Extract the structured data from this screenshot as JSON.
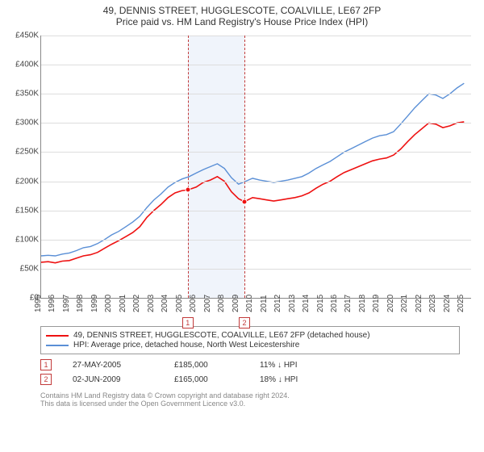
{
  "title": {
    "line1": "49, DENNIS STREET, HUGGLESCOTE, COALVILLE, LE67 2FP",
    "line2": "Price paid vs. HM Land Registry's House Price Index (HPI)"
  },
  "chart": {
    "type": "line",
    "background_color": "#ffffff",
    "grid_color": "#dddddd",
    "axis_color": "#888888",
    "x_min": 1995,
    "x_max": 2025.5,
    "y_min": 0,
    "y_max": 450000,
    "y_ticks": [
      0,
      50000,
      100000,
      150000,
      200000,
      250000,
      300000,
      350000,
      400000,
      450000
    ],
    "y_tick_labels": [
      "£0",
      "£50K",
      "£100K",
      "£150K",
      "£200K",
      "£250K",
      "£300K",
      "£350K",
      "£400K",
      "£450K"
    ],
    "x_ticks": [
      1995,
      1996,
      1997,
      1998,
      1999,
      2000,
      2001,
      2002,
      2003,
      2004,
      2005,
      2006,
      2007,
      2008,
      2009,
      2010,
      2011,
      2012,
      2013,
      2014,
      2015,
      2016,
      2017,
      2018,
      2019,
      2020,
      2021,
      2022,
      2023,
      2024,
      2025
    ],
    "shaded_regions": [
      {
        "from": 2005.4,
        "to": 2009.42,
        "fill": "#f0f4fb",
        "border_color": "#c23a3a"
      }
    ],
    "sale_markers": [
      {
        "label": "1",
        "x": 2005.4,
        "y": 185000,
        "color": "#c23a3a",
        "dot_color": "#e11"
      },
      {
        "label": "2",
        "x": 2009.42,
        "y": 165000,
        "color": "#c23a3a",
        "dot_color": "#e11"
      }
    ],
    "series": [
      {
        "name": "property",
        "color": "#e11",
        "width": 1.6,
        "points": [
          [
            1995,
            61000
          ],
          [
            1995.5,
            62000
          ],
          [
            1996,
            60000
          ],
          [
            1996.5,
            63000
          ],
          [
            1997,
            64000
          ],
          [
            1997.5,
            68000
          ],
          [
            1998,
            72000
          ],
          [
            1998.5,
            74000
          ],
          [
            1999,
            78000
          ],
          [
            1999.5,
            85000
          ],
          [
            2000,
            92000
          ],
          [
            2000.5,
            98000
          ],
          [
            2001,
            105000
          ],
          [
            2001.5,
            112000
          ],
          [
            2002,
            122000
          ],
          [
            2002.5,
            138000
          ],
          [
            2003,
            150000
          ],
          [
            2003.5,
            160000
          ],
          [
            2004,
            172000
          ],
          [
            2004.5,
            180000
          ],
          [
            2005,
            184000
          ],
          [
            2005.4,
            185000
          ],
          [
            2006,
            190000
          ],
          [
            2006.5,
            198000
          ],
          [
            2007,
            202000
          ],
          [
            2007.5,
            208000
          ],
          [
            2008,
            200000
          ],
          [
            2008.5,
            182000
          ],
          [
            2009,
            170000
          ],
          [
            2009.42,
            165000
          ],
          [
            2010,
            172000
          ],
          [
            2010.5,
            170000
          ],
          [
            2011,
            168000
          ],
          [
            2011.5,
            166000
          ],
          [
            2012,
            168000
          ],
          [
            2012.5,
            170000
          ],
          [
            2013,
            172000
          ],
          [
            2013.5,
            175000
          ],
          [
            2014,
            180000
          ],
          [
            2014.5,
            188000
          ],
          [
            2015,
            195000
          ],
          [
            2015.5,
            200000
          ],
          [
            2016,
            208000
          ],
          [
            2016.5,
            215000
          ],
          [
            2017,
            220000
          ],
          [
            2017.5,
            225000
          ],
          [
            2018,
            230000
          ],
          [
            2018.5,
            235000
          ],
          [
            2019,
            238000
          ],
          [
            2019.5,
            240000
          ],
          [
            2020,
            245000
          ],
          [
            2020.5,
            255000
          ],
          [
            2021,
            268000
          ],
          [
            2021.5,
            280000
          ],
          [
            2022,
            290000
          ],
          [
            2022.5,
            300000
          ],
          [
            2023,
            298000
          ],
          [
            2023.5,
            292000
          ],
          [
            2024,
            295000
          ],
          [
            2024.5,
            300000
          ],
          [
            2025,
            302000
          ]
        ]
      },
      {
        "name": "hpi",
        "color": "#5a8fd6",
        "width": 1.4,
        "points": [
          [
            1995,
            72000
          ],
          [
            1995.5,
            73000
          ],
          [
            1996,
            72000
          ],
          [
            1996.5,
            75000
          ],
          [
            1997,
            77000
          ],
          [
            1997.5,
            81000
          ],
          [
            1998,
            86000
          ],
          [
            1998.5,
            88000
          ],
          [
            1999,
            93000
          ],
          [
            1999.5,
            100000
          ],
          [
            2000,
            108000
          ],
          [
            2000.5,
            114000
          ],
          [
            2001,
            122000
          ],
          [
            2001.5,
            130000
          ],
          [
            2002,
            140000
          ],
          [
            2002.5,
            155000
          ],
          [
            2003,
            168000
          ],
          [
            2003.5,
            178000
          ],
          [
            2004,
            190000
          ],
          [
            2004.5,
            198000
          ],
          [
            2005,
            204000
          ],
          [
            2005.5,
            208000
          ],
          [
            2006,
            214000
          ],
          [
            2006.5,
            220000
          ],
          [
            2007,
            225000
          ],
          [
            2007.5,
            230000
          ],
          [
            2008,
            222000
          ],
          [
            2008.5,
            206000
          ],
          [
            2009,
            195000
          ],
          [
            2009.5,
            200000
          ],
          [
            2010,
            205000
          ],
          [
            2010.5,
            202000
          ],
          [
            2011,
            200000
          ],
          [
            2011.5,
            198000
          ],
          [
            2012,
            200000
          ],
          [
            2012.5,
            202000
          ],
          [
            2013,
            205000
          ],
          [
            2013.5,
            208000
          ],
          [
            2014,
            214000
          ],
          [
            2014.5,
            222000
          ],
          [
            2015,
            228000
          ],
          [
            2015.5,
            234000
          ],
          [
            2016,
            242000
          ],
          [
            2016.5,
            250000
          ],
          [
            2017,
            256000
          ],
          [
            2017.5,
            262000
          ],
          [
            2018,
            268000
          ],
          [
            2018.5,
            274000
          ],
          [
            2019,
            278000
          ],
          [
            2019.5,
            280000
          ],
          [
            2020,
            285000
          ],
          [
            2020.5,
            298000
          ],
          [
            2021,
            312000
          ],
          [
            2021.5,
            326000
          ],
          [
            2022,
            338000
          ],
          [
            2022.5,
            350000
          ],
          [
            2023,
            348000
          ],
          [
            2023.5,
            342000
          ],
          [
            2024,
            350000
          ],
          [
            2024.5,
            360000
          ],
          [
            2025,
            368000
          ]
        ]
      }
    ]
  },
  "legend": {
    "items": [
      {
        "color": "#e11",
        "label": "49, DENNIS STREET, HUGGLESCOTE, COALVILLE, LE67 2FP (detached house)"
      },
      {
        "color": "#5a8fd6",
        "label": "HPI: Average price, detached house, North West Leicestershire"
      }
    ]
  },
  "sales": [
    {
      "marker": "1",
      "marker_color": "#c23a3a",
      "date": "27-MAY-2005",
      "price": "£185,000",
      "diff": "11% ↓ HPI"
    },
    {
      "marker": "2",
      "marker_color": "#c23a3a",
      "date": "02-JUN-2009",
      "price": "£165,000",
      "diff": "18% ↓ HPI"
    }
  ],
  "footer": {
    "line1": "Contains HM Land Registry data © Crown copyright and database right 2024.",
    "line2": "This data is licensed under the Open Government Licence v3.0."
  }
}
